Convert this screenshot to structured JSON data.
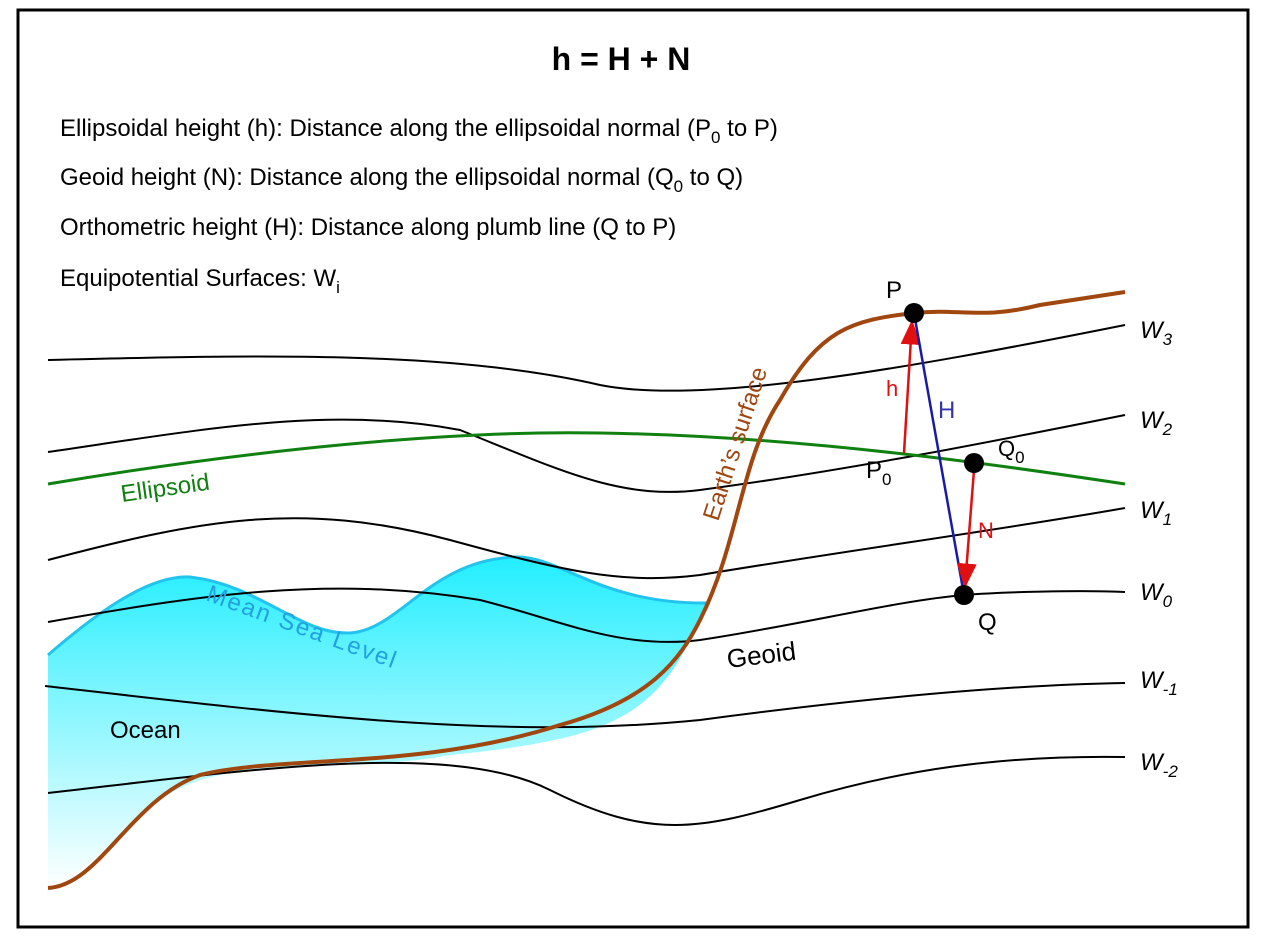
{
  "title": "h = H + N",
  "definitions": [
    [
      "Ellipsoidal height (h): Distance along the ellipsoidal normal (P",
      "0",
      " to P)"
    ],
    [
      "Geoid height (N): Distance along the ellipsoidal normal (Q",
      "0",
      " to Q)"
    ],
    [
      "Orthometric height (H): Distance along plumb line (Q to P)"
    ],
    [
      "Equipotential Surfaces: W",
      "i"
    ]
  ],
  "points": [
    {
      "label": "P"
    },
    {
      "label": "P",
      "sub": "0"
    },
    {
      "label": "Q"
    },
    {
      "label": "Q",
      "sub": "0"
    }
  ],
  "distances": {
    "h": "h",
    "H": "H",
    "N": "N"
  },
  "surfaces": [
    {
      "label": "W",
      "sub": "3"
    },
    {
      "label": "W",
      "sub": "2"
    },
    {
      "label": "W",
      "sub": "1"
    },
    {
      "label": "W",
      "sub": "0"
    },
    {
      "label": "W",
      "sub": "-1"
    },
    {
      "label": "W",
      "sub": "-2"
    }
  ],
  "ellipsoid": "Ellipsoid",
  "earth_surface": "Earth’s surface",
  "mean_sea_level": "Mean Sea Level",
  "geoid": "Geoid",
  "ocean": "Ocean"
}
